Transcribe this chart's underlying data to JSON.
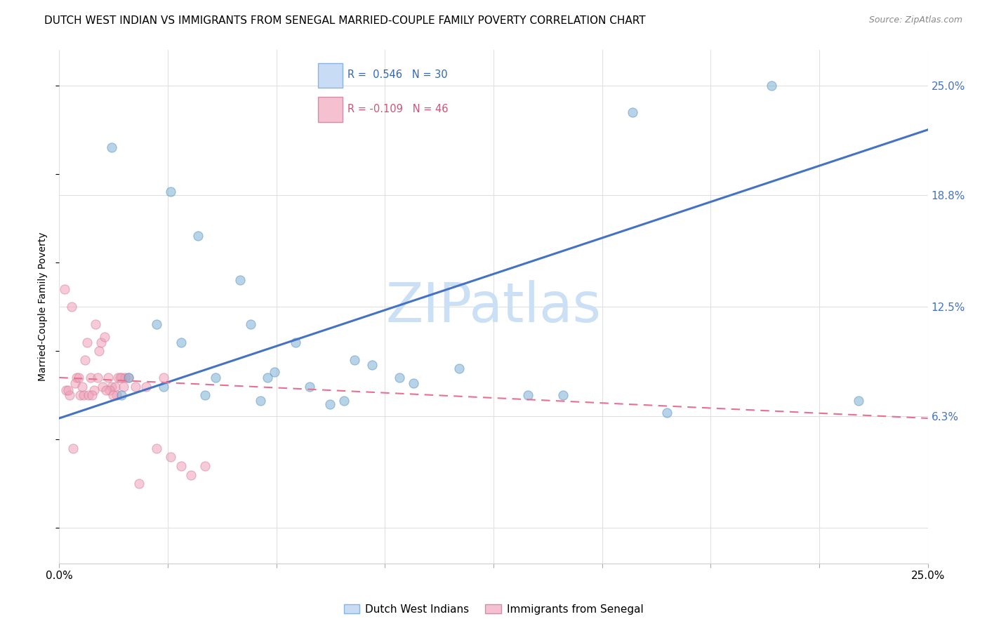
{
  "title": "DUTCH WEST INDIAN VS IMMIGRANTS FROM SENEGAL MARRIED-COUPLE FAMILY POVERTY CORRELATION CHART",
  "source": "Source: ZipAtlas.com",
  "ylabel": "Married-Couple Family Poverty",
  "xmin": 0.0,
  "xmax": 25.0,
  "ymin": -2.0,
  "ymax": 27.0,
  "yticks": [
    0.0,
    6.3,
    12.5,
    18.8,
    25.0
  ],
  "ytick_labels": [
    "",
    "6.3%",
    "12.5%",
    "18.8%",
    "25.0%"
  ],
  "blue_line_x0": 0.0,
  "blue_line_y0": 6.2,
  "blue_line_x1": 25.0,
  "blue_line_y1": 22.5,
  "pink_line_x0": 0.0,
  "pink_line_y0": 8.5,
  "pink_line_x1": 25.0,
  "pink_line_y1": 6.2,
  "blue_scatter_x": [
    1.5,
    3.2,
    4.0,
    5.2,
    6.8,
    8.5,
    10.2,
    11.5,
    13.5,
    16.5,
    2.0,
    3.5,
    4.5,
    5.8,
    7.2,
    9.0,
    2.8,
    4.2,
    6.0,
    7.8,
    1.8,
    3.0,
    5.5,
    6.2,
    8.2,
    9.8,
    14.5,
    17.5,
    20.5,
    23.0
  ],
  "blue_scatter_y": [
    21.5,
    19.0,
    16.5,
    14.0,
    10.5,
    9.5,
    8.2,
    9.0,
    7.5,
    23.5,
    8.5,
    10.5,
    8.5,
    7.2,
    8.0,
    9.2,
    11.5,
    7.5,
    8.5,
    7.0,
    7.5,
    8.0,
    11.5,
    8.8,
    7.2,
    8.5,
    7.5,
    6.5,
    25.0,
    7.2
  ],
  "pink_scatter_x": [
    0.2,
    0.3,
    0.4,
    0.5,
    0.6,
    0.7,
    0.8,
    0.9,
    1.0,
    1.1,
    1.2,
    1.3,
    1.4,
    1.5,
    1.6,
    1.7,
    1.8,
    1.9,
    2.0,
    2.2,
    0.25,
    0.45,
    0.65,
    0.85,
    1.05,
    1.25,
    1.45,
    1.65,
    1.85,
    2.5,
    3.0,
    3.5,
    4.2,
    0.15,
    0.35,
    0.55,
    0.75,
    0.95,
    1.15,
    1.35,
    1.55,
    1.75,
    2.8,
    3.2,
    2.3,
    3.8
  ],
  "pink_scatter_y": [
    7.8,
    7.5,
    4.5,
    8.5,
    7.5,
    7.5,
    10.5,
    8.5,
    7.8,
    8.5,
    10.5,
    10.8,
    8.5,
    8.0,
    8.0,
    8.5,
    8.5,
    8.5,
    8.5,
    8.0,
    7.8,
    8.2,
    8.0,
    7.5,
    11.5,
    8.0,
    7.8,
    7.5,
    8.0,
    8.0,
    8.5,
    3.5,
    3.5,
    13.5,
    12.5,
    8.5,
    9.5,
    7.5,
    10.0,
    7.8,
    7.5,
    8.5,
    4.5,
    4.0,
    2.5,
    3.0
  ],
  "blue_dot_color": "#7bafd4",
  "blue_dot_edge": "#5b8fc4",
  "pink_dot_color": "#f0a0b8",
  "pink_dot_edge": "#d08098",
  "blue_line_color": "#4472c4",
  "pink_line_color": "#e87090",
  "grid_color": "#e0e0e0",
  "background_color": "#ffffff",
  "title_fontsize": 11,
  "source_fontsize": 9,
  "ylabel_fontsize": 10,
  "scatter_size": 90,
  "scatter_alpha": 0.55,
  "watermark": "ZIPatlas",
  "watermark_color": "#cce0f5",
  "legend_blue_label": "R =  0.546   N = 30",
  "legend_pink_label": "R = -0.109   N = 46",
  "legend_blue_text_color": "#3366bb",
  "legend_pink_text_color": "#cc5577",
  "bottom_legend_blue": "Dutch West Indians",
  "bottom_legend_pink": "Immigrants from Senegal"
}
